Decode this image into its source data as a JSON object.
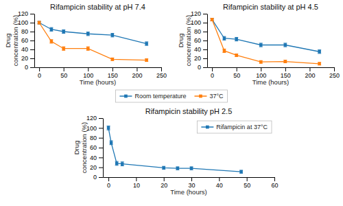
{
  "chart_data": [
    {
      "type": "line",
      "title": "Rifampicin stability at pH 7.4",
      "xlabel": "Time (hours)",
      "ylabel": "Drug\nconcentration (%)",
      "x": [
        0,
        25,
        50,
        100,
        150,
        220
      ],
      "series": [
        {
          "name": "Room temperature",
          "values": [
            100,
            85,
            80,
            75,
            72,
            53
          ],
          "errors": [
            3,
            4,
            4,
            4,
            4,
            4
          ]
        },
        {
          "name": "37°C",
          "values": [
            100,
            58,
            42,
            42,
            18,
            16
          ],
          "errors": [
            3,
            4,
            4,
            4,
            3,
            3
          ]
        }
      ],
      "xlim": [
        -10,
        250
      ],
      "xticks": [
        0,
        50,
        100,
        150,
        200,
        250
      ],
      "ylim": [
        0,
        120
      ],
      "yticks": [
        0,
        20,
        40,
        60,
        80,
        100,
        120
      ],
      "marker": "square",
      "grid": false,
      "legend": "bottom"
    },
    {
      "type": "line",
      "title": "Rifampicin stability at pH 4.5",
      "xlabel": "Time (hours)",
      "ylabel": "Drug\nconcentration (%)",
      "x": [
        0,
        25,
        50,
        100,
        150,
        220
      ],
      "series": [
        {
          "name": "Room temperature",
          "values": [
            107,
            65,
            63,
            50,
            50,
            35
          ],
          "errors": [
            3,
            4,
            4,
            4,
            4,
            4
          ]
        },
        {
          "name": "37°C",
          "values": [
            107,
            37,
            27,
            12,
            13,
            8
          ],
          "errors": [
            3,
            4,
            3,
            3,
            3,
            3
          ]
        }
      ],
      "xlim": [
        -10,
        250
      ],
      "xticks": [
        0,
        50,
        100,
        150,
        200,
        250
      ],
      "ylim": [
        0,
        120
      ],
      "yticks": [
        0,
        20,
        40,
        60,
        80,
        100,
        120
      ],
      "marker": "square",
      "grid": false,
      "legend": "bottom"
    },
    {
      "type": "line",
      "title": "Rifampicin stability pH 2.5",
      "xlabel": "Time (hours)",
      "ylabel": "Drug\nconcentration (%)",
      "x": [
        0,
        1,
        3,
        5,
        20,
        25,
        30,
        48
      ],
      "series": [
        {
          "name": "Rifampicin at 37°C",
          "values": [
            100,
            70,
            28,
            27,
            19,
            18,
            18,
            11
          ],
          "errors": [
            4,
            4,
            4,
            4,
            3,
            3,
            3,
            3
          ]
        }
      ],
      "xlim": [
        -2,
        60
      ],
      "xticks": [
        0,
        10,
        20,
        30,
        40,
        50,
        60
      ],
      "ylim": [
        0,
        120
      ],
      "yticks": [
        0,
        20,
        40,
        60,
        80,
        100,
        120
      ],
      "marker": "square",
      "grid": false,
      "legend": "upper right"
    }
  ]
}
